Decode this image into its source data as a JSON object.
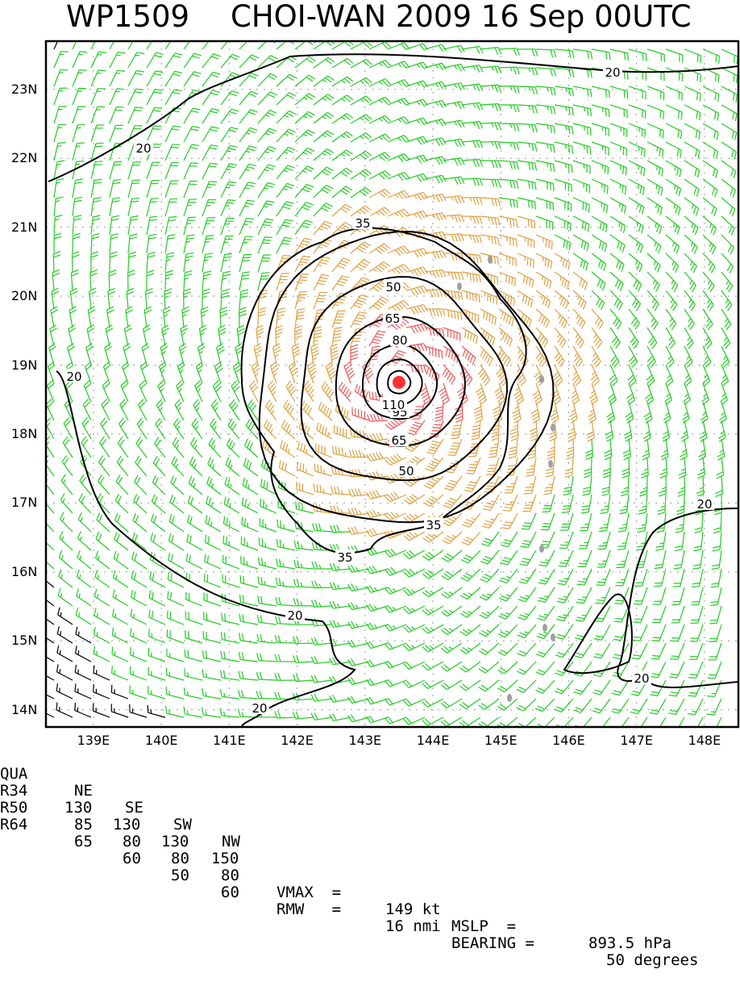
{
  "title": {
    "storm_id": "WP1509",
    "storm_info": "CHOI-WAN 2009 16 Sep 00UTC"
  },
  "map": {
    "lat_labels": [
      "23N",
      "22N",
      "21N",
      "20N",
      "19N",
      "18N",
      "17N",
      "16N",
      "15N",
      "14N"
    ],
    "lon_labels": [
      "139E",
      "140E",
      "141E",
      "142E",
      "143E",
      "144E",
      "145E",
      "146E",
      "147E",
      "148E"
    ],
    "lat_range": [
      13.75,
      23.7
    ],
    "lon_range": [
      138.3,
      148.5
    ],
    "storm_center": {
      "lat": 18.75,
      "lon": 143.5
    },
    "contour_labels": [
      "20",
      "20",
      "20",
      "20",
      "20",
      "20",
      "20",
      "35",
      "35",
      "35",
      "50",
      "50",
      "65",
      "65",
      "80",
      "95",
      "110"
    ],
    "colors": {
      "barb_weak": "#000000",
      "barb_gale": "#22cc22",
      "barb_storm": "#e0a040",
      "barb_hurricane": "#f05858",
      "contour": "#000000",
      "center": "#ff3030",
      "land": "#a0a0a0"
    }
  },
  "wind_radii": {
    "header": [
      "QUA",
      "NE",
      "SE",
      "SW",
      "NW"
    ],
    "rows": [
      {
        "label": "R34",
        "values": [
          "130",
          "130",
          "130",
          "150"
        ]
      },
      {
        "label": "R50",
        "values": [
          "85",
          "80",
          "80",
          "80"
        ]
      },
      {
        "label": "R64",
        "values": [
          "65",
          "60",
          "50",
          "60"
        ]
      }
    ]
  },
  "stats": {
    "vmax_label": "VMAX  =",
    "vmax_value": "149 kt",
    "mslp_label": "MSLP  =",
    "mslp_value": "893.5 hPa",
    "rmw_label": "RMW   =",
    "rmw_value": "16 nmi",
    "bearing_label": "BEARING =",
    "bearing_value": "50 degrees"
  }
}
